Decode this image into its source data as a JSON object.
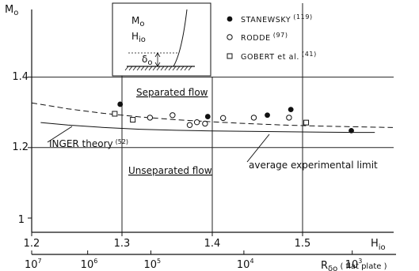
{
  "chart_data": {
    "type": "scatter",
    "y_axis": {
      "label": "M",
      "label_sub": "o",
      "ticks": [
        "1",
        "1.2",
        "1.4"
      ],
      "ylim": [
        1.0,
        1.5
      ]
    },
    "x_axis": {
      "label": "H",
      "label_sub": "io",
      "ticks": [
        "1.2",
        "1.3",
        "1.4",
        "1.5"
      ],
      "xlim": [
        1.2,
        1.6
      ]
    },
    "secondary_x_axis": {
      "label": "R",
      "label_sub": "δo",
      "label_suffix": " ( flat plate )",
      "ticks": [
        {
          "h": 1.2,
          "base": "10",
          "exp": "7"
        },
        {
          "h": 1.262,
          "base": "10",
          "exp": "6"
        },
        {
          "h": 1.332,
          "base": "10",
          "exp": "5"
        },
        {
          "h": 1.435,
          "base": "10",
          "exp": "4"
        },
        {
          "h": 1.555,
          "base": "10",
          "exp": "3"
        }
      ]
    },
    "series": [
      {
        "name": "STANEWSKY",
        "ref": "(119)",
        "marker": "filled-circle",
        "x": [
          1.298,
          1.395,
          1.461,
          1.487,
          1.554
        ],
        "y": [
          1.323,
          1.288,
          1.292,
          1.308,
          1.248
        ]
      },
      {
        "name": "RODDE",
        "ref": "(97)",
        "marker": "open-circle",
        "x": [
          1.331,
          1.356,
          1.375,
          1.383,
          1.392,
          1.412,
          1.446,
          1.485
        ],
        "y": [
          1.285,
          1.292,
          1.264,
          1.272,
          1.268,
          1.284,
          1.285,
          1.285
        ]
      },
      {
        "name": "GOBERT et al.",
        "ref": "(41)",
        "marker": "open-square",
        "x": [
          1.292,
          1.312,
          1.504
        ],
        "y": [
          1.296,
          1.279,
          1.271
        ]
      }
    ],
    "curves": [
      {
        "name": "average experimental limit",
        "style": "dashed",
        "x": [
          1.2,
          1.24,
          1.28,
          1.32,
          1.36,
          1.4,
          1.44,
          1.48,
          1.52,
          1.56,
          1.6
        ],
        "y": [
          1.327,
          1.31,
          1.297,
          1.287,
          1.279,
          1.273,
          1.268,
          1.264,
          1.261,
          1.259,
          1.257
        ]
      },
      {
        "name": "INGER theory",
        "ref": "(52)",
        "style": "solid",
        "x": [
          1.21,
          1.24,
          1.28,
          1.32,
          1.36,
          1.4,
          1.44,
          1.48,
          1.52,
          1.56,
          1.58
        ],
        "y": [
          1.271,
          1.264,
          1.257,
          1.252,
          1.249,
          1.247,
          1.246,
          1.245,
          1.244,
          1.243,
          1.243
        ]
      }
    ],
    "annotations": {
      "separated": "Separated flow",
      "unseparated": "Unseparated flow",
      "inger_label": "INGER theory",
      "inger_ref": "(52)",
      "avg_label": "average experimental limit"
    },
    "inset": {
      "m_label": "M",
      "m_sub": "o",
      "h_label": "H",
      "h_sub": "io",
      "d_label": "δ",
      "d_sub": "o"
    },
    "grid": true,
    "legend_position": "top-right"
  }
}
